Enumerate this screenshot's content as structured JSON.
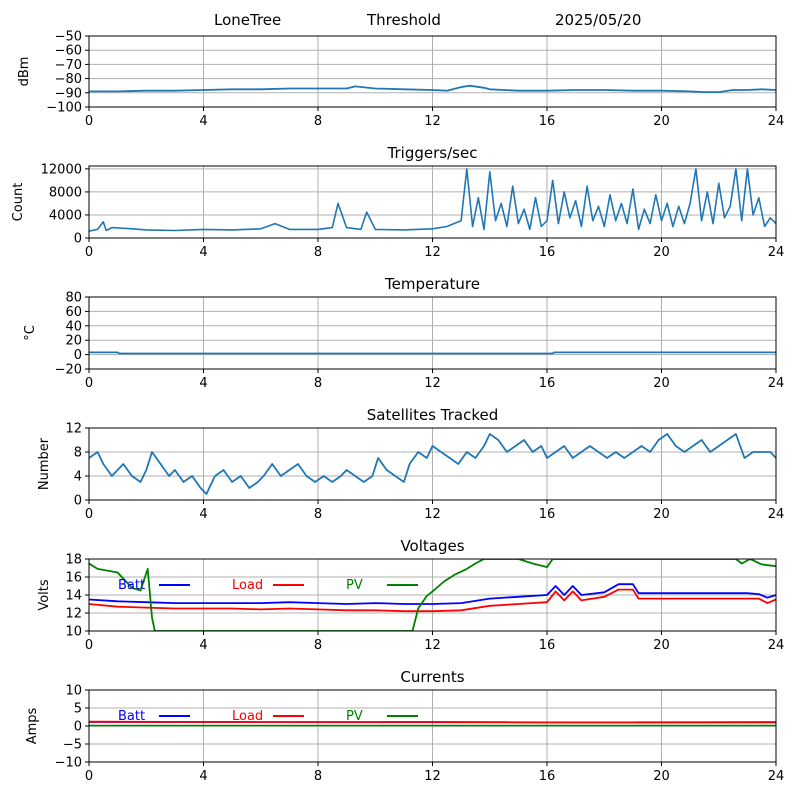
{
  "header": {
    "site": "LoneTree",
    "mode": "Threshold",
    "date": "2025/05/20"
  },
  "chart_data": [
    {
      "id": "rssi",
      "type": "line",
      "title": "",
      "ylabel": "dBm",
      "xlim": [
        0,
        24
      ],
      "ylim": [
        -100,
        -50
      ],
      "xticks": [
        0,
        4,
        8,
        12,
        16,
        20,
        24
      ],
      "yticks": [
        -100,
        -90,
        -80,
        -70,
        -60,
        -50
      ],
      "grid": true,
      "series": [
        {
          "color": "#1f77b4",
          "x": [
            0,
            1,
            2,
            3,
            4,
            5,
            6,
            7,
            8,
            9,
            9.3,
            10,
            11,
            12,
            12.5,
            13,
            13.3,
            13.8,
            14,
            15,
            16,
            17,
            18,
            19,
            20,
            21,
            21.5,
            22,
            22.5,
            23,
            23.5,
            24
          ],
          "y": [
            -89,
            -89,
            -88.5,
            -88.5,
            -88,
            -87.5,
            -87.5,
            -87,
            -87,
            -87,
            -85.5,
            -87,
            -87.5,
            -88,
            -88.5,
            -86,
            -85,
            -86.5,
            -87.5,
            -88.5,
            -88.5,
            -88,
            -88,
            -88.5,
            -88.5,
            -89,
            -89.5,
            -89.5,
            -88,
            -88,
            -87.5,
            -88
          ]
        }
      ]
    },
    {
      "id": "triggers",
      "type": "line",
      "title": "Triggers/sec",
      "ylabel": "Count",
      "xlim": [
        0,
        24
      ],
      "ylim": [
        0,
        12500
      ],
      "xticks": [
        0,
        4,
        8,
        12,
        16,
        20,
        24
      ],
      "yticks": [
        0,
        4000,
        8000,
        12000
      ],
      "grid": true,
      "series": [
        {
          "color": "#1f77b4",
          "x": [
            0,
            0.3,
            0.5,
            0.6,
            0.8,
            1.5,
            2,
            3,
            4,
            5,
            6,
            6.5,
            7,
            8,
            8.5,
            8.7,
            9,
            9.5,
            9.7,
            10,
            11,
            12,
            12.5,
            13,
            13.2,
            13.4,
            13.6,
            13.8,
            14,
            14.2,
            14.4,
            14.6,
            14.8,
            15,
            15.2,
            15.4,
            15.6,
            15.8,
            16,
            16.2,
            16.4,
            16.6,
            16.8,
            17,
            17.2,
            17.4,
            17.6,
            17.8,
            18,
            18.2,
            18.4,
            18.6,
            18.8,
            19,
            19.2,
            19.4,
            19.6,
            19.8,
            20,
            20.2,
            20.4,
            20.6,
            20.8,
            21,
            21.2,
            21.4,
            21.6,
            21.8,
            22,
            22.2,
            22.4,
            22.6,
            22.8,
            23,
            23.2,
            23.4,
            23.6,
            23.8,
            24
          ],
          "y": [
            1200,
            1500,
            2800,
            1300,
            1800,
            1600,
            1400,
            1300,
            1500,
            1400,
            1600,
            2500,
            1500,
            1500,
            1800,
            6000,
            1800,
            1500,
            4500,
            1500,
            1400,
            1600,
            2000,
            3000,
            12000,
            2000,
            7000,
            1500,
            11500,
            3000,
            6000,
            2000,
            9000,
            2500,
            5000,
            1500,
            7000,
            2000,
            3000,
            10000,
            2500,
            8000,
            3500,
            6500,
            2000,
            9000,
            3000,
            5500,
            2000,
            7500,
            3000,
            6000,
            2500,
            8500,
            1500,
            5000,
            2500,
            7500,
            3000,
            6000,
            2000,
            5500,
            2500,
            6000,
            12000,
            3000,
            8000,
            2500,
            9500,
            3500,
            5500,
            12000,
            3000,
            12000,
            4000,
            7000,
            2000,
            3500,
            2500
          ]
        }
      ]
    },
    {
      "id": "temperature",
      "type": "line",
      "title": "Temperature",
      "ylabel": "°C",
      "xlim": [
        0,
        24
      ],
      "ylim": [
        -20,
        80
      ],
      "xticks": [
        0,
        4,
        8,
        12,
        16,
        20,
        24
      ],
      "yticks": [
        -20,
        0,
        20,
        40,
        60,
        80
      ],
      "grid": true,
      "series": [
        {
          "color": "#1f77b4",
          "x": [
            0,
            1,
            1.05,
            16.2,
            16.25,
            24
          ],
          "y": [
            3,
            3,
            1.5,
            1.5,
            3,
            3
          ]
        }
      ]
    },
    {
      "id": "satellites",
      "type": "line",
      "title": "Satellites Tracked",
      "ylabel": "Number",
      "xlim": [
        0,
        24
      ],
      "ylim": [
        0,
        12
      ],
      "xticks": [
        0,
        4,
        8,
        12,
        16,
        20,
        24
      ],
      "yticks": [
        0,
        4,
        8,
        12
      ],
      "grid": true,
      "series": [
        {
          "color": "#1f77b4",
          "x": [
            0,
            0.3,
            0.5,
            0.8,
            1,
            1.2,
            1.5,
            1.8,
            2,
            2.2,
            2.5,
            2.8,
            3,
            3.3,
            3.6,
            3.9,
            4.1,
            4.4,
            4.7,
            5,
            5.3,
            5.6,
            5.9,
            6.1,
            6.4,
            6.7,
            7,
            7.3,
            7.6,
            7.9,
            8.2,
            8.5,
            8.8,
            9,
            9.3,
            9.6,
            9.9,
            10.1,
            10.4,
            10.7,
            11,
            11.2,
            11.5,
            11.8,
            12,
            12.3,
            12.6,
            12.9,
            13.2,
            13.5,
            13.8,
            14,
            14.3,
            14.6,
            14.9,
            15.2,
            15.5,
            15.8,
            16,
            16.3,
            16.6,
            16.9,
            17.2,
            17.5,
            17.8,
            18.1,
            18.4,
            18.7,
            19,
            19.3,
            19.6,
            19.9,
            20.2,
            20.5,
            20.8,
            21.1,
            21.4,
            21.7,
            22,
            22.3,
            22.6,
            22.9,
            23.2,
            23.5,
            23.8,
            24
          ],
          "y": [
            7,
            8,
            6,
            4,
            5,
            6,
            4,
            3,
            5,
            8,
            6,
            4,
            5,
            3,
            4,
            2,
            1,
            4,
            5,
            3,
            4,
            2,
            3,
            4,
            6,
            4,
            5,
            6,
            4,
            3,
            4,
            3,
            4,
            5,
            4,
            3,
            4,
            7,
            5,
            4,
            3,
            6,
            8,
            7,
            9,
            8,
            7,
            6,
            8,
            7,
            9,
            11,
            10,
            8,
            9,
            10,
            8,
            9,
            7,
            8,
            9,
            7,
            8,
            9,
            8,
            7,
            8,
            7,
            8,
            9,
            8,
            10,
            11,
            9,
            8,
            9,
            10,
            8,
            9,
            10,
            11,
            7,
            8,
            8,
            8,
            7
          ]
        }
      ]
    },
    {
      "id": "voltages",
      "type": "line",
      "title": "Voltages",
      "ylabel": "Volts",
      "xlim": [
        0,
        24
      ],
      "ylim": [
        10,
        18
      ],
      "xticks": [
        0,
        4,
        8,
        12,
        16,
        20,
        24
      ],
      "yticks": [
        10,
        12,
        14,
        16,
        18
      ],
      "grid": true,
      "legend": [
        "Batt",
        "Load",
        "PV"
      ],
      "series": [
        {
          "name": "Batt",
          "color": "#0000ff",
          "x": [
            0,
            1,
            2,
            3,
            4,
            5,
            6,
            7,
            8,
            9,
            10,
            11,
            12,
            13,
            14,
            15,
            16,
            16.3,
            16.6,
            16.9,
            17.2,
            18,
            18.5,
            19,
            19.2,
            20,
            21,
            22,
            23,
            23.4,
            23.7,
            24
          ],
          "y": [
            13.5,
            13.3,
            13.2,
            13.1,
            13.1,
            13.1,
            13.1,
            13.2,
            13.1,
            13.0,
            13.1,
            13.0,
            13.0,
            13.1,
            13.6,
            13.8,
            14.0,
            15.0,
            14.0,
            15.0,
            14.0,
            14.3,
            15.2,
            15.2,
            14.2,
            14.2,
            14.2,
            14.2,
            14.2,
            14.1,
            13.7,
            14.0
          ]
        },
        {
          "name": "Load",
          "color": "#ff0000",
          "x": [
            0,
            1,
            2,
            3,
            4,
            5,
            6,
            7,
            8,
            9,
            10,
            11,
            12,
            13,
            14,
            15,
            16,
            16.3,
            16.6,
            16.9,
            17.2,
            18,
            18.5,
            19,
            19.2,
            20,
            21,
            22,
            23,
            23.4,
            23.7,
            24
          ],
          "y": [
            13.0,
            12.7,
            12.6,
            12.5,
            12.5,
            12.5,
            12.4,
            12.5,
            12.4,
            12.3,
            12.3,
            12.2,
            12.2,
            12.3,
            12.8,
            13.0,
            13.2,
            14.4,
            13.4,
            14.4,
            13.4,
            13.8,
            14.6,
            14.6,
            13.6,
            13.6,
            13.6,
            13.6,
            13.6,
            13.6,
            13.1,
            13.5
          ]
        },
        {
          "name": "PV",
          "color": "#008000",
          "x": [
            0,
            0.3,
            1,
            1.5,
            1.8,
            2.05,
            2.2,
            2.3,
            11.3,
            11.5,
            11.8,
            12.0,
            12.4,
            12.8,
            13.2,
            13.5,
            13.8,
            14.2,
            15.0,
            15.5,
            16.0,
            16.2,
            22.6,
            22.8,
            23.1,
            23.5,
            24
          ],
          "y": [
            17.5,
            16.9,
            16.5,
            14.8,
            14.5,
            16.9,
            11.5,
            10,
            10,
            12.5,
            13.9,
            14.4,
            15.5,
            16.3,
            16.9,
            17.5,
            18,
            18,
            18,
            17.5,
            17.1,
            18,
            18,
            17.5,
            18,
            17.4,
            17.2
          ]
        }
      ]
    },
    {
      "id": "currents",
      "type": "line",
      "title": "Currents",
      "ylabel": "Amps",
      "xlim": [
        0,
        24
      ],
      "ylim": [
        -10,
        10
      ],
      "xticks": [
        0,
        4,
        8,
        12,
        16,
        20,
        24
      ],
      "yticks": [
        -10,
        -5,
        0,
        5,
        10
      ],
      "grid": true,
      "legend": [
        "Batt",
        "Load",
        "PV"
      ],
      "series": [
        {
          "name": "Batt",
          "color": "#0000ff",
          "x": [
            0,
            24
          ],
          "y": [
            1.1,
            1.0
          ]
        },
        {
          "name": "Load",
          "color": "#ff0000",
          "x": [
            0,
            4,
            8,
            12,
            16,
            20,
            24
          ],
          "y": [
            1.2,
            1.1,
            1.1,
            1.1,
            1.0,
            1.0,
            1.1
          ]
        },
        {
          "name": "PV",
          "color": "#008000",
          "x": [
            0,
            24
          ],
          "y": [
            0.1,
            0.1
          ]
        }
      ]
    }
  ]
}
